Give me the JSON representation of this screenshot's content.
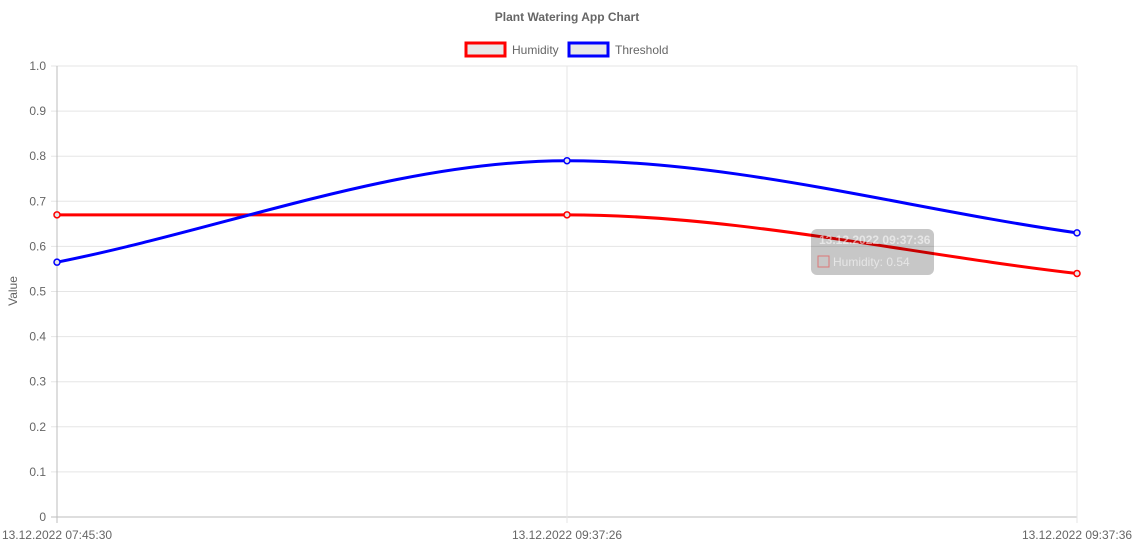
{
  "chart_data": {
    "type": "line",
    "title": "Plant Watering App Chart",
    "ylabel": "Value",
    "xlabel": "",
    "categories": [
      "13.12.2022 07:45:30",
      "13.12.2022 09:37:26",
      "13.12.2022 09:37:36"
    ],
    "ylim": [
      0,
      1.0
    ],
    "yticks": [
      "0",
      "0.1",
      "0.2",
      "0.3",
      "0.4",
      "0.5",
      "0.6",
      "0.7",
      "0.8",
      "0.9",
      "1.0"
    ],
    "grid": true,
    "legend_position": "top",
    "series": [
      {
        "name": "Humidity",
        "values": [
          0.67,
          0.67,
          0.54
        ],
        "color": "#ff0000"
      },
      {
        "name": "Threshold",
        "values": [
          0.565,
          0.79,
          0.63
        ],
        "color": "#0000ff"
      }
    ],
    "tooltip": {
      "title": "13.12.2022 09:37:36",
      "series": "Humidity",
      "value": "0.54",
      "text": "Humidity: 0.54"
    }
  }
}
